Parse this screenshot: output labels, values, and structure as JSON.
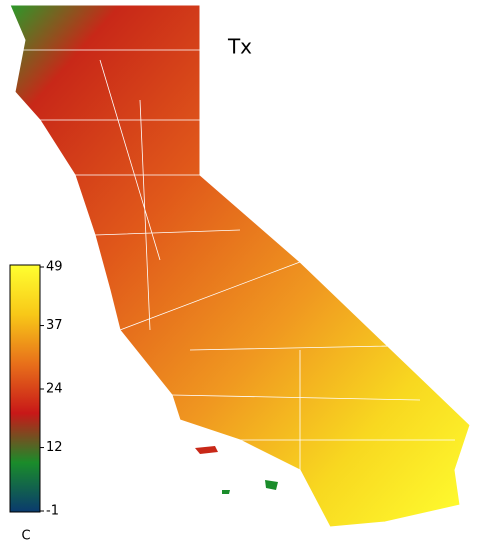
{
  "map": {
    "title": "Tx",
    "colorbar": {
      "unit": "C",
      "lim": [
        -1,
        49
      ],
      "ticks": [
        49,
        37,
        24,
        12,
        -1
      ],
      "colors": [
        "#0a3a6e",
        "#1a8c2a",
        "#c81818",
        "#e8701a",
        "#f8c818",
        "#ffff30"
      ]
    }
  }
}
